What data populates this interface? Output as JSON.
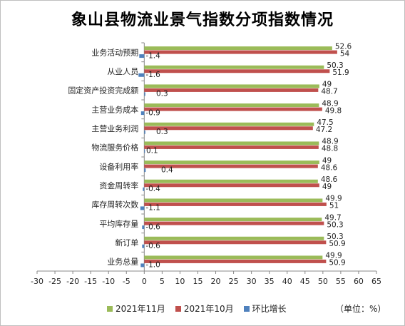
{
  "chart_data": {
    "type": "bar",
    "orientation": "horizontal",
    "title": "象山县物流业景气指数分项指数情况",
    "categories": [
      "业务总量",
      "新订单",
      "平均库存量",
      "库存周转次数",
      "资金周转率",
      "设备利用率",
      "物流服务价格",
      "主营业务利润",
      "主营业务成本",
      "固定资产投资完成额",
      "从业人员",
      "业务活动预期"
    ],
    "series": [
      {
        "name": "2021年11月",
        "color": "#9bbb59",
        "values": [
          49.9,
          50.3,
          49.7,
          49.9,
          48.6,
          49,
          48.9,
          47.5,
          48.9,
          49,
          50.3,
          52.6
        ],
        "labels": [
          "49.9",
          "50.3",
          "49.7",
          "49.9",
          "48.6",
          "49",
          "48.9",
          "47.5",
          "48.9",
          "49",
          "50.3",
          "52.6"
        ]
      },
      {
        "name": "2021年10月",
        "color": "#c0504d",
        "values": [
          50.9,
          50.9,
          50.3,
          51,
          49,
          48.6,
          48.8,
          47.2,
          49.8,
          48.7,
          51.9,
          54
        ],
        "labels": [
          "50.9",
          "50.9",
          "50.3",
          "51",
          "49",
          "48.6",
          "48.8",
          "47.2",
          "49.8",
          "48.7",
          "51.9",
          "54"
        ]
      },
      {
        "name": "环比增长",
        "color": "#4f81bd",
        "values": [
          -1.0,
          -0.6,
          -0.6,
          -1.1,
          -0.4,
          0.4,
          0.1,
          0.3,
          -0.9,
          0.3,
          -1.6,
          -1.4
        ],
        "labels": [
          "-1.0",
          "-0.6",
          "-0.6",
          "-1.1",
          "-0.4",
          "0.4",
          "0.1",
          "0.3",
          "-0.9",
          "0.3",
          "-1.6",
          "-1.4"
        ]
      }
    ],
    "xlim": [
      -30,
      65
    ],
    "xticks": [
      "-30",
      "-25",
      "-20",
      "-15",
      "-10",
      "-5",
      "0",
      "5",
      "10",
      "15",
      "20",
      "25",
      "30",
      "35",
      "40",
      "45",
      "50",
      "55",
      "60",
      "65"
    ],
    "unit_label": "（单位：%）",
    "grid": false,
    "legend": "bottom"
  }
}
